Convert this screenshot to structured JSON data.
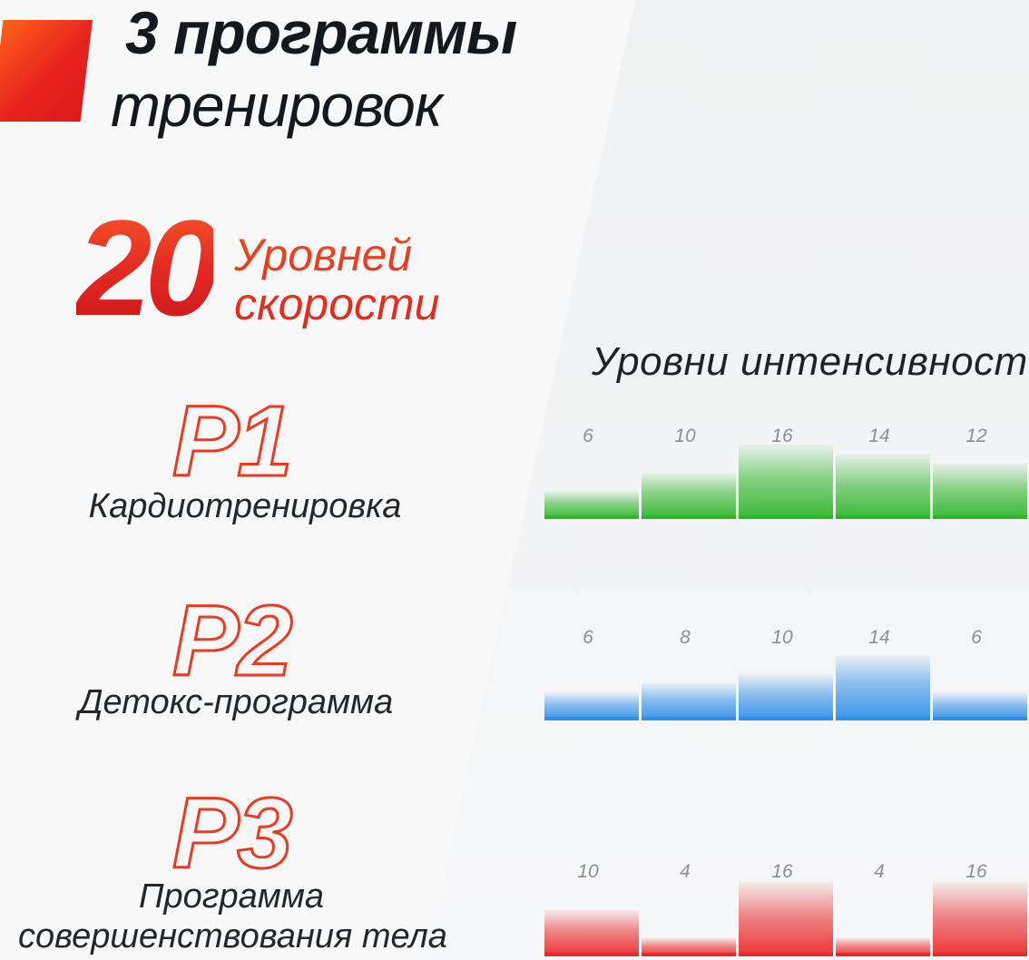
{
  "header": {
    "title_line1": "3 программы",
    "title_line2": "тренировок"
  },
  "speed": {
    "number": "20",
    "label_line1": "Уровней",
    "label_line2": "скорости"
  },
  "programs": [
    {
      "code": "P1",
      "name_lines": [
        "Кардиотренировка"
      ]
    },
    {
      "code": "P2",
      "name_lines": [
        "Детокс-программа"
      ]
    },
    {
      "code": "P3",
      "name_lines": [
        "Программа",
        "совершенствования тела"
      ]
    }
  ],
  "colors": {
    "accent": "#e8231e",
    "green": "#2fb52a",
    "blue": "#2f8ee8",
    "red": "#ea2a2a"
  },
  "chart_data": {
    "type": "bar",
    "title": "Уровни интенсивности",
    "ylim": [
      0,
      16
    ],
    "grid": false,
    "legend": "none",
    "series": [
      {
        "program": "P1",
        "color": "#2fb52a",
        "values": [
          6,
          10,
          16,
          14,
          12
        ]
      },
      {
        "program": "P2",
        "color": "#2f8ee8",
        "values": [
          6,
          8,
          10,
          14,
          6
        ]
      },
      {
        "program": "P3",
        "color": "#ea2a2a",
        "values": [
          10,
          4,
          16,
          4,
          16
        ]
      }
    ]
  }
}
